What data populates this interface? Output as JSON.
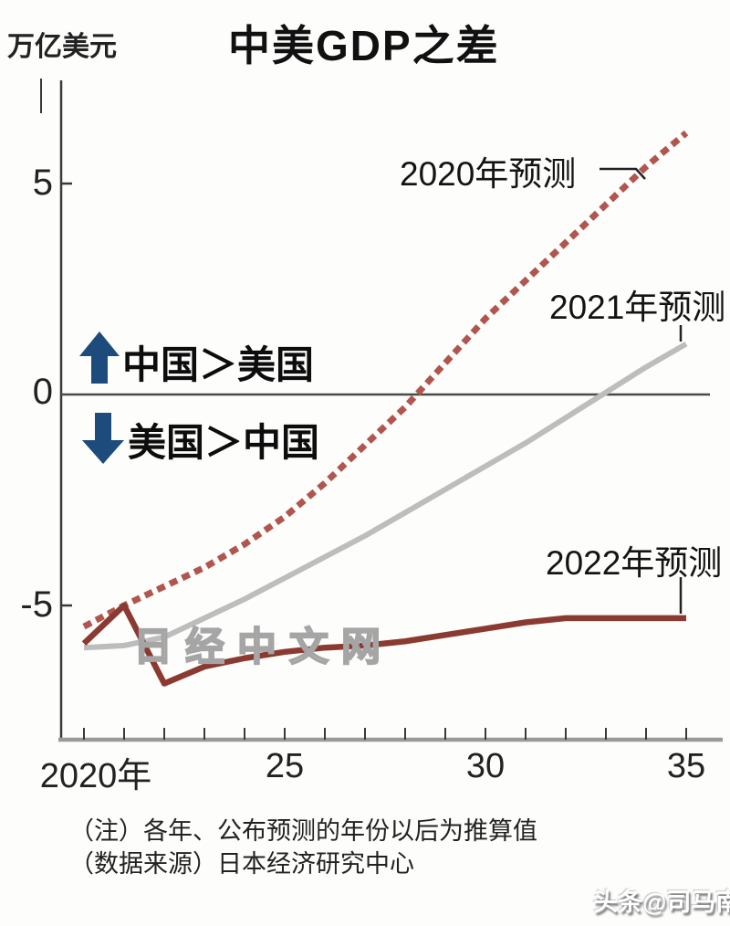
{
  "page": {
    "unit": "万亿美元",
    "title": "中美GDP之差"
  },
  "chart_data": {
    "type": "line",
    "title": "中美GDP之差",
    "ylabel": "万亿美元",
    "x": [
      2020,
      2021,
      2022,
      2023,
      2024,
      2025,
      2026,
      2027,
      2028,
      2029,
      2030,
      2031,
      2032,
      2033,
      2034,
      2035
    ],
    "x_tick_labels": [
      "2020年",
      "25",
      "30",
      "35"
    ],
    "x_tick_label_years": [
      2020,
      2025,
      2030,
      2035
    ],
    "yticks": [
      5,
      0,
      -5
    ],
    "ytick_labels": [
      "5",
      "0",
      "-5"
    ],
    "ylim": [
      -8.2,
      7.4
    ],
    "grid": false,
    "zero_line": true,
    "legend_position": "inline-callouts",
    "series": [
      {
        "id": "2020",
        "name": "2020年预测",
        "style": "dashed",
        "color": "#b0564e",
        "width": 7,
        "values": [
          -5.5,
          -5.0,
          -4.55,
          -4.1,
          -3.55,
          -2.9,
          -2.1,
          -1.2,
          -0.3,
          0.75,
          1.8,
          2.7,
          3.6,
          4.5,
          5.4,
          6.2
        ]
      },
      {
        "id": "2021",
        "name": "2021年预测",
        "style": "solid",
        "color": "#bdbdbd",
        "width": 6,
        "values": [
          -6.0,
          -5.95,
          -5.75,
          -5.3,
          -4.85,
          -4.35,
          -3.85,
          -3.35,
          -2.8,
          -2.25,
          -1.7,
          -1.15,
          -0.55,
          0.05,
          0.65,
          1.2
        ]
      },
      {
        "id": "2022",
        "name": "2022年预测",
        "style": "solid",
        "color": "#8b3a31",
        "width": 6.5,
        "values": [
          -5.9,
          -5.0,
          -6.85,
          -6.45,
          -6.25,
          -6.1,
          -6.0,
          -5.95,
          -5.85,
          -5.7,
          -5.55,
          -5.4,
          -5.3,
          -5.3,
          -5.3,
          -5.3
        ]
      }
    ],
    "annotations": [
      {
        "icon": "up-arrow",
        "text": "中国＞美国",
        "region": "above-zero"
      },
      {
        "icon": "down-arrow",
        "text": "美国＞中国",
        "region": "below-zero"
      }
    ]
  },
  "footer": {
    "note1": "（注）各年、公布预测的年份以后为推算值",
    "note2": "（数据来源）日本经济研究中心"
  },
  "watermarks": {
    "center": "日经中文网",
    "bottom_right": "头条@司马南"
  },
  "colors": {
    "forecast2020": "#b0564e",
    "forecast2021": "#bdbdbd",
    "forecast2022": "#8b3a31",
    "arrow": "#1d4b7c",
    "x_axis": "#9a9a9a",
    "axis_dark": "#3a3a3a",
    "zero_line": "#4a4a4a"
  }
}
